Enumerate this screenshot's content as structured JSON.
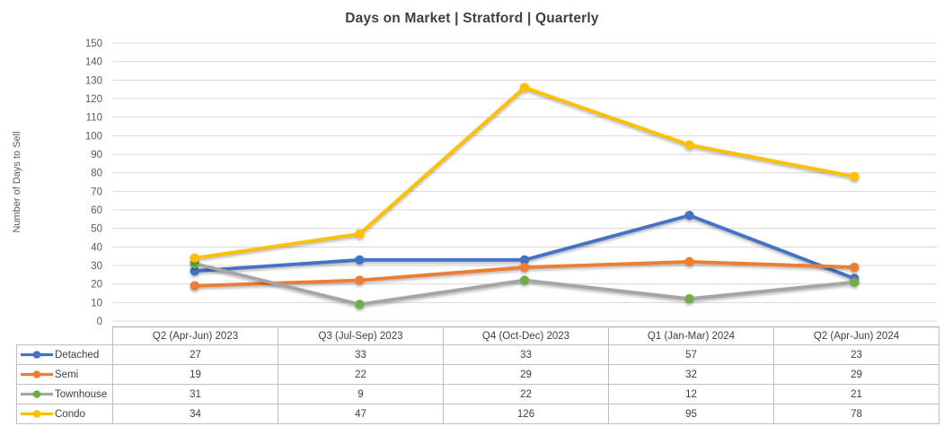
{
  "chart_data": {
    "type": "line",
    "title": "Days on Market | Stratford | Quarterly",
    "xlabel": "",
    "ylabel": "Number of Days to Sell",
    "categories": [
      "Q2 (Apr-Jun) 2023",
      "Q3 (Jul-Sep) 2023",
      "Q4 (Oct-Dec) 2023",
      "Q1 (Jan-Mar) 2024",
      "Q2 (Apr-Jun) 2024"
    ],
    "series": [
      {
        "name": "Detached",
        "values": [
          27,
          33,
          33,
          57,
          23
        ],
        "line_color": "#4472C4",
        "marker_color": "#4472C4"
      },
      {
        "name": "Semi",
        "values": [
          19,
          22,
          29,
          32,
          29
        ],
        "line_color": "#ED7D31",
        "marker_color": "#ED7D31"
      },
      {
        "name": "Townhouse",
        "values": [
          31,
          9,
          22,
          12,
          21
        ],
        "line_color": "#A5A5A5",
        "marker_color": "#70AD47"
      },
      {
        "name": "Condo",
        "values": [
          34,
          47,
          126,
          95,
          78
        ],
        "line_color": "#FFC000",
        "marker_color": "#FFC000"
      }
    ],
    "ylim": [
      0,
      150
    ],
    "ytick_step": 10,
    "grid": true,
    "legend_position": "table-left",
    "marker_shape": "circle"
  },
  "colors": {
    "background": "#FFFFFF",
    "title_text": "#404040",
    "axis_text": "#595959",
    "gridline": "#D9D9D9",
    "table_border": "#BFBFBF",
    "table_text": "#404040"
  }
}
